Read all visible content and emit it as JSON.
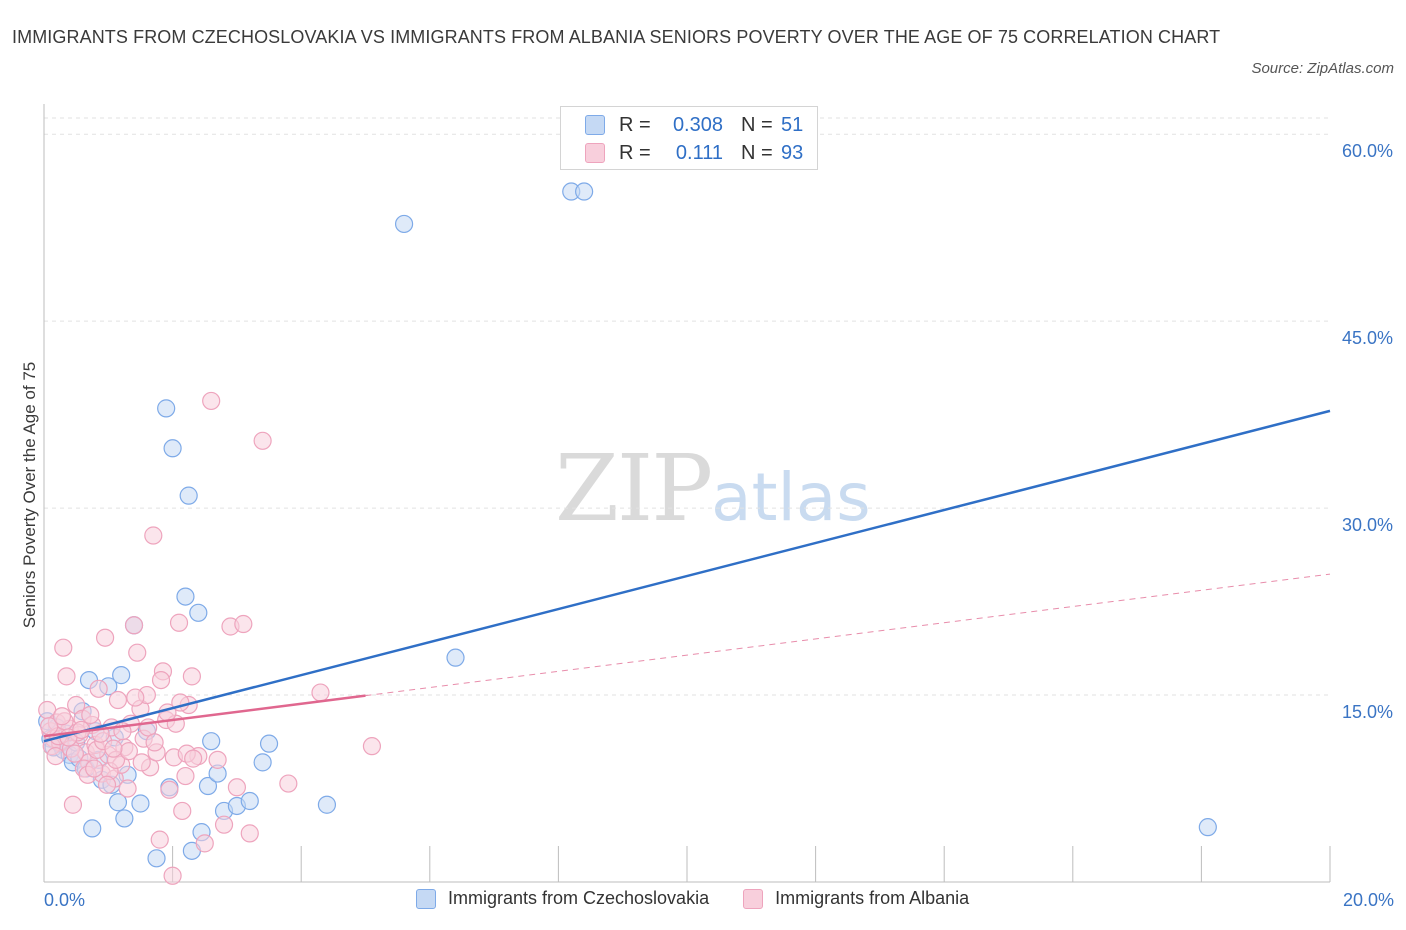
{
  "chart_data": {
    "type": "scatter",
    "title": "IMMIGRANTS FROM CZECHOSLOVAKIA VS IMMIGRANTS FROM ALBANIA SENIORS POVERTY OVER THE AGE OF 75 CORRELATION CHART",
    "source": "Source: ZipAtlas.com",
    "xlabel": "",
    "ylabel": "Seniors Poverty Over the Age of 75",
    "xlim": [
      0,
      20
    ],
    "ylim": [
      0,
      60
    ],
    "x_tick_labels": [
      "0.0%",
      "20.0%"
    ],
    "y_ticks": [
      15,
      30,
      45,
      60
    ],
    "y_tick_labels": [
      "15.0%",
      "30.0%",
      "45.0%",
      "60.0%"
    ],
    "watermark": {
      "zip": "ZIP",
      "atlas": "atlas"
    },
    "legend": [
      {
        "r_label": "R =",
        "r_value": "0.308",
        "n_label": "N =",
        "n_value": "51"
      },
      {
        "r_label": "R =",
        "r_value": "0.111",
        "n_label": "N =",
        "n_value": "93"
      }
    ],
    "series": [
      {
        "name": "Immigrants from Czechoslovakia",
        "color": "#7eaae8",
        "fill": "#c5d9f4",
        "line_color": "#2f6fc6",
        "trend": {
          "x": [
            0,
            20
          ],
          "y": [
            11.3,
            37.8
          ],
          "dashed_from": null
        },
        "points": [
          [
            0.1,
            11.5
          ],
          [
            0.15,
            10.8
          ],
          [
            0.2,
            12.4
          ],
          [
            0.25,
            11.1
          ],
          [
            0.3,
            10.6
          ],
          [
            0.35,
            11.9
          ],
          [
            0.4,
            10.2
          ],
          [
            0.45,
            9.6
          ],
          [
            0.5,
            11.2
          ],
          [
            0.55,
            9.9
          ],
          [
            0.6,
            13.7
          ],
          [
            0.65,
            9.1
          ],
          [
            0.7,
            16.2
          ],
          [
            0.75,
            4.3
          ],
          [
            0.8,
            12.1
          ],
          [
            0.85,
            9.8
          ],
          [
            0.9,
            8.2
          ],
          [
            1.0,
            15.7
          ],
          [
            1.05,
            7.8
          ],
          [
            1.1,
            11.6
          ],
          [
            1.15,
            6.4
          ],
          [
            1.2,
            16.6
          ],
          [
            1.25,
            5.1
          ],
          [
            1.3,
            8.6
          ],
          [
            1.4,
            20.6
          ],
          [
            1.5,
            6.3
          ],
          [
            1.6,
            12.1
          ],
          [
            1.75,
            1.9
          ],
          [
            1.9,
            38.0
          ],
          [
            1.95,
            7.6
          ],
          [
            2.0,
            34.8
          ],
          [
            2.2,
            22.9
          ],
          [
            2.25,
            31.0
          ],
          [
            2.3,
            2.5
          ],
          [
            2.4,
            21.6
          ],
          [
            2.45,
            4.0
          ],
          [
            2.55,
            7.7
          ],
          [
            2.6,
            11.3
          ],
          [
            2.7,
            8.7
          ],
          [
            2.8,
            5.7
          ],
          [
            3.0,
            6.1
          ],
          [
            3.2,
            6.5
          ],
          [
            3.4,
            9.6
          ],
          [
            3.5,
            11.1
          ],
          [
            4.4,
            6.2
          ],
          [
            5.6,
            52.8
          ],
          [
            6.4,
            18.0
          ],
          [
            8.2,
            55.4
          ],
          [
            8.4,
            55.4
          ],
          [
            18.1,
            4.4
          ],
          [
            0.05,
            12.9
          ]
        ]
      },
      {
        "name": "Immigrants from Albania",
        "color": "#eea4bd",
        "fill": "#f8cfdc",
        "line_color": "#e0678f",
        "trend": {
          "x": [
            0,
            20
          ],
          "y": [
            11.7,
            24.7
          ],
          "dashed_from": 5.0
        },
        "points": [
          [
            0.05,
            13.8
          ],
          [
            0.1,
            12.1
          ],
          [
            0.15,
            11.5
          ],
          [
            0.2,
            12.8
          ],
          [
            0.25,
            11.2
          ],
          [
            0.3,
            18.8
          ],
          [
            0.35,
            16.5
          ],
          [
            0.4,
            12.3
          ],
          [
            0.45,
            6.2
          ],
          [
            0.5,
            14.2
          ],
          [
            0.55,
            11.8
          ],
          [
            0.6,
            13.1
          ],
          [
            0.65,
            10.4
          ],
          [
            0.7,
            9.6
          ],
          [
            0.75,
            12.6
          ],
          [
            0.8,
            11.0
          ],
          [
            0.85,
            15.5
          ],
          [
            0.9,
            8.7
          ],
          [
            0.95,
            19.6
          ],
          [
            1.0,
            10.2
          ],
          [
            1.05,
            12.4
          ],
          [
            1.1,
            8.3
          ],
          [
            1.15,
            14.6
          ],
          [
            1.2,
            9.4
          ],
          [
            1.25,
            10.8
          ],
          [
            1.3,
            7.5
          ],
          [
            1.35,
            12.7
          ],
          [
            1.4,
            20.6
          ],
          [
            1.45,
            18.4
          ],
          [
            1.5,
            13.9
          ],
          [
            1.55,
            11.5
          ],
          [
            1.6,
            15.0
          ],
          [
            1.65,
            9.2
          ],
          [
            1.7,
            27.8
          ],
          [
            1.75,
            10.4
          ],
          [
            1.8,
            3.4
          ],
          [
            1.85,
            16.9
          ],
          [
            1.9,
            13.0
          ],
          [
            1.95,
            7.4
          ],
          [
            2.0,
            0.5
          ],
          [
            2.05,
            12.7
          ],
          [
            2.1,
            20.8
          ],
          [
            2.15,
            5.7
          ],
          [
            2.2,
            8.5
          ],
          [
            2.25,
            14.2
          ],
          [
            2.3,
            16.5
          ],
          [
            2.4,
            10.1
          ],
          [
            2.5,
            3.1
          ],
          [
            2.6,
            38.6
          ],
          [
            2.7,
            9.8
          ],
          [
            2.8,
            4.6
          ],
          [
            2.9,
            20.5
          ],
          [
            3.0,
            7.6
          ],
          [
            3.1,
            20.7
          ],
          [
            3.2,
            3.9
          ],
          [
            3.4,
            35.4
          ],
          [
            3.8,
            7.9
          ],
          [
            4.3,
            15.2
          ],
          [
            5.1,
            10.9
          ],
          [
            0.12,
            10.9
          ],
          [
            0.22,
            11.7
          ],
          [
            0.32,
            12.9
          ],
          [
            0.42,
            10.7
          ],
          [
            0.52,
            12.0
          ],
          [
            0.62,
            9.1
          ],
          [
            0.72,
            13.4
          ],
          [
            0.82,
            10.6
          ],
          [
            0.92,
            11.3
          ],
          [
            1.02,
            8.9
          ],
          [
            1.12,
            9.8
          ],
          [
            1.22,
            12.1
          ],
          [
            1.32,
            10.5
          ],
          [
            1.42,
            14.8
          ],
          [
            1.52,
            9.6
          ],
          [
            1.62,
            12.4
          ],
          [
            1.72,
            11.2
          ],
          [
            1.82,
            16.2
          ],
          [
            1.92,
            13.6
          ],
          [
            2.02,
            10.0
          ],
          [
            2.12,
            14.4
          ],
          [
            2.22,
            10.3
          ],
          [
            2.32,
            9.9
          ],
          [
            0.08,
            12.5
          ],
          [
            0.18,
            10.1
          ],
          [
            0.28,
            13.3
          ],
          [
            0.38,
            11.6
          ],
          [
            0.48,
            10.3
          ],
          [
            0.58,
            12.2
          ],
          [
            0.68,
            8.6
          ],
          [
            0.78,
            9.1
          ],
          [
            0.88,
            11.9
          ],
          [
            0.98,
            7.8
          ],
          [
            1.08,
            10.7
          ]
        ]
      }
    ]
  }
}
